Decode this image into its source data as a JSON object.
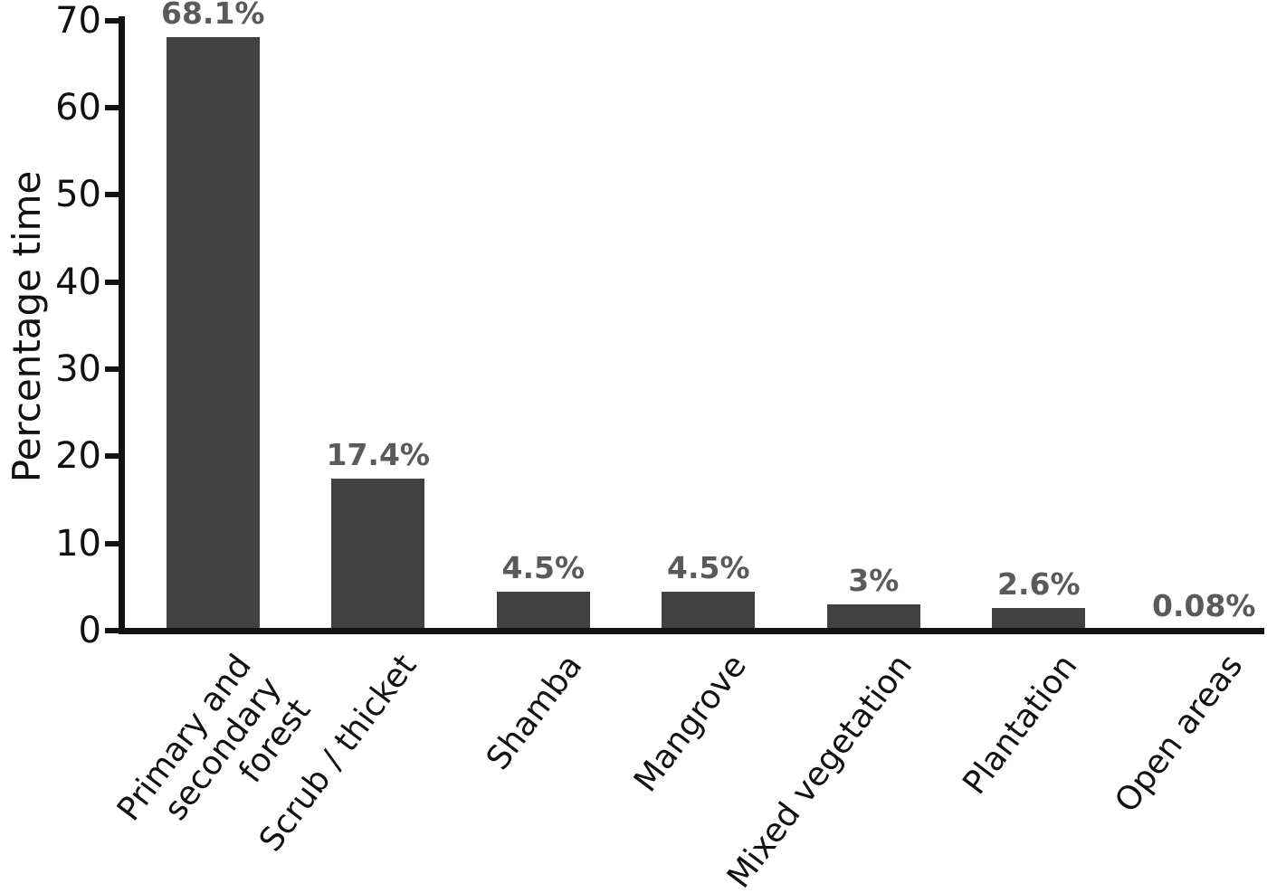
{
  "chart_data": {
    "type": "bar",
    "title": "",
    "xlabel": "",
    "ylabel": "Percentage time",
    "categories": [
      "Primary and secondary forest",
      "Scrub / thicket",
      "Shamba",
      "Mangrove",
      "Mixed vegetation",
      "Plantation",
      "Open areas"
    ],
    "categories_wrapped": [
      "Primary and\nsecondary forest",
      "Scrub / thicket",
      "Shamba",
      "Mangrove",
      "Mixed vegetation",
      "Plantation",
      "Open areas"
    ],
    "values": [
      68.1,
      17.4,
      4.5,
      4.5,
      3,
      2.6,
      0.08
    ],
    "value_labels": [
      "68.1%",
      "17.4%",
      "4.5%",
      "4.5%",
      "3%",
      "2.6%",
      "0.08%"
    ],
    "ylim": [
      0,
      70
    ],
    "yticks": [
      0,
      10,
      20,
      30,
      40,
      50,
      60,
      70
    ],
    "grid": false,
    "legend": "none",
    "colors": {
      "bar": "#414141",
      "value_label": "#5a5a5a",
      "axis": "#111111",
      "background": "#ffffff"
    }
  }
}
